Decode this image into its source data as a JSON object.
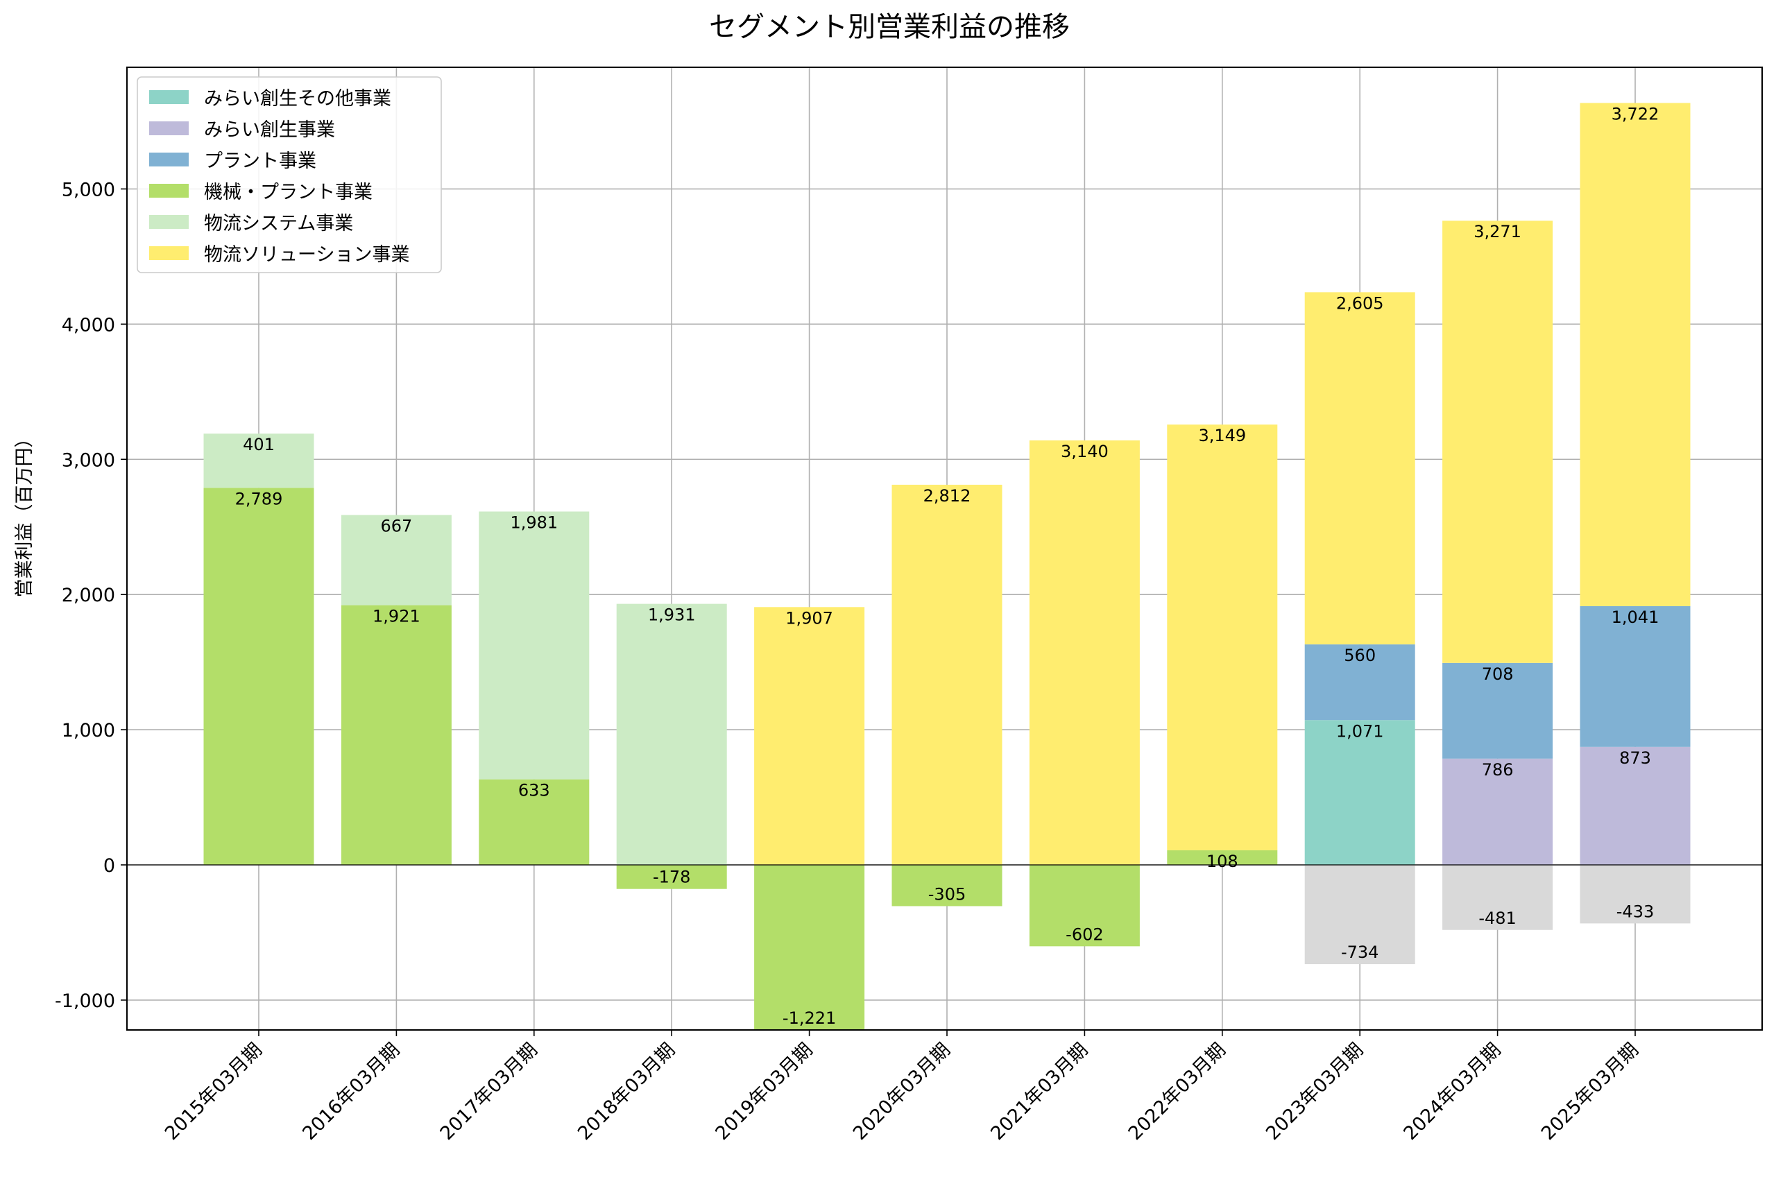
{
  "chart_data": {
    "type": "bar",
    "stacked": true,
    "title": "セグメント別営業利益の推移",
    "xlabel": "",
    "ylabel": "営業利益（百万円）",
    "ylim": [
      -1221,
      5900
    ],
    "yticks": [
      -1000,
      0,
      1000,
      2000,
      3000,
      4000,
      5000
    ],
    "ytick_labels": [
      "-1,000",
      "0",
      "1,000",
      "2,000",
      "3,000",
      "4,000",
      "5,000"
    ],
    "grid": true,
    "legend_position": "top-left",
    "categories": [
      "2015年03月期",
      "2016年03月期",
      "2017年03月期",
      "2018年03月期",
      "2019年03月期",
      "2020年03月期",
      "2021年03月期",
      "2022年03月期",
      "2023年03月期",
      "2024年03月期",
      "2025年03月期"
    ],
    "series": [
      {
        "name": "物流ソリューション事業",
        "color": "#ffed6f",
        "values": [
          null,
          null,
          null,
          null,
          1907,
          2812,
          3140,
          3149,
          2605,
          3271,
          3722
        ],
        "labels": [
          "",
          "",
          "",
          "",
          "1,907",
          "2,812",
          "3,140",
          "3,149",
          "2,605",
          "3,271",
          "3,722"
        ]
      },
      {
        "name": "物流システム事業",
        "color": "#ccebc5",
        "values": [
          401,
          667,
          1981,
          1931,
          null,
          null,
          null,
          null,
          null,
          null,
          null
        ],
        "labels": [
          "401",
          "667",
          "1,981",
          "1,931",
          "",
          "",
          "",
          "",
          "",
          "",
          ""
        ]
      },
      {
        "name": "機械・プラント事業",
        "color": "#b3de69",
        "values": [
          2789,
          1921,
          633,
          -178,
          -1221,
          -305,
          -602,
          108,
          null,
          null,
          null
        ],
        "labels": [
          "2,789",
          "1,921",
          "633",
          "-178",
          "-1,221",
          "-305",
          "-602",
          "108",
          "",
          "",
          ""
        ]
      },
      {
        "name": "プラント事業",
        "color": "#80b1d3",
        "values": [
          null,
          null,
          null,
          null,
          null,
          null,
          null,
          null,
          560,
          708,
          1041
        ],
        "labels": [
          "",
          "",
          "",
          "",
          "",
          "",
          "",
          "",
          "560",
          "708",
          "1,041"
        ]
      },
      {
        "name": "みらい創生事業",
        "color": "#bebada",
        "values": [
          null,
          null,
          null,
          null,
          null,
          null,
          null,
          null,
          null,
          786,
          873
        ],
        "labels": [
          "",
          "",
          "",
          "",
          "",
          "",
          "",
          "",
          "",
          "786",
          "873"
        ]
      },
      {
        "name": "みらい創生その他事業",
        "color": "#8dd3c7",
        "values": [
          null,
          null,
          null,
          null,
          null,
          null,
          null,
          null,
          1071,
          null,
          null
        ],
        "labels": [
          "",
          "",
          "",
          "",
          "",
          "",
          "",
          "",
          "1,071",
          "",
          ""
        ]
      },
      {
        "name": "",
        "color": "#d9d9d9",
        "values": [
          null,
          null,
          null,
          null,
          null,
          null,
          null,
          null,
          -734,
          -481,
          -433
        ],
        "labels": [
          "",
          "",
          "",
          "",
          "",
          "",
          "",
          "",
          "-734",
          "-481",
          "-433"
        ]
      }
    ],
    "stack_order": [
      "機械・プラント事業",
      "みらい創生その他事業",
      "みらい創生事業",
      "プラント事業",
      "物流システム事業",
      "物流ソリューション事業",
      ""
    ],
    "legend": [
      "みらい創生その他事業",
      "みらい創生事業",
      "プラント事業",
      "機械・プラント事業",
      "物流システム事業",
      "物流ソリューション事業"
    ]
  }
}
